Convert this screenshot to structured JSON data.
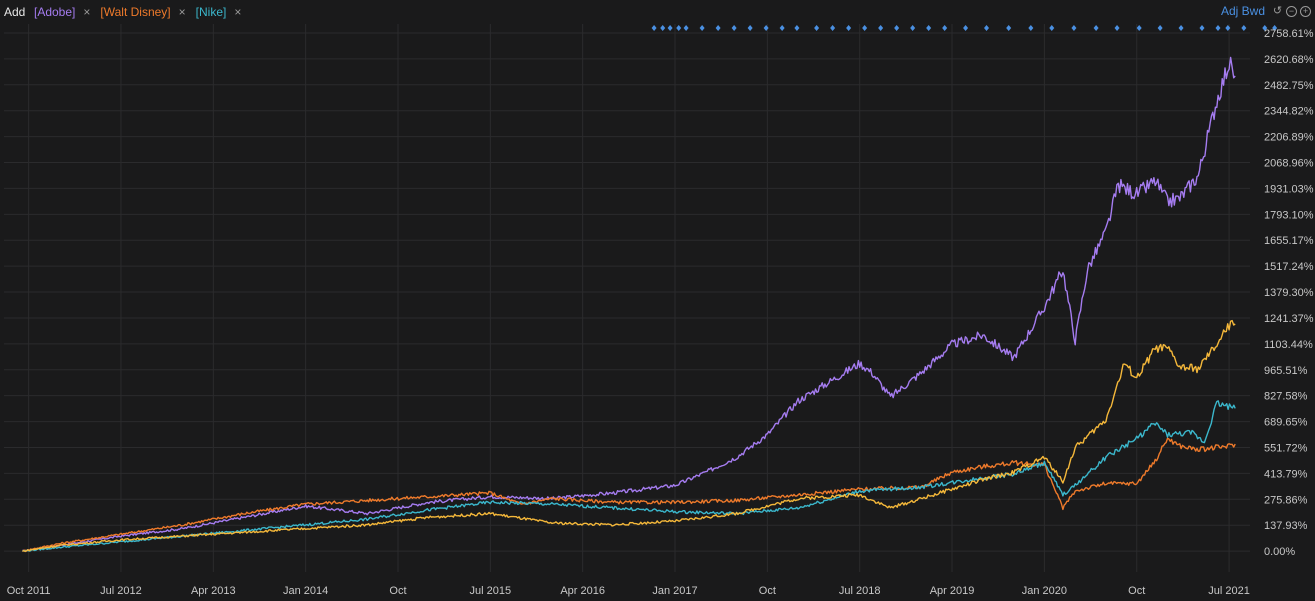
{
  "toolbar": {
    "add_label": "Add",
    "series_tags": [
      {
        "label": "[Adobe]",
        "color": "#a57cf0"
      },
      {
        "label": "[Walt Disney]",
        "color": "#ee7a2b"
      },
      {
        "label": "[Nike]",
        "color": "#3bb7cc"
      }
    ],
    "close_glyph": "×",
    "adj_label": "Adj Bwd"
  },
  "chart_data": {
    "type": "line",
    "y_ticks": [
      "0.00%",
      "137.93%",
      "275.86%",
      "413.79%",
      "551.72%",
      "689.65%",
      "827.58%",
      "965.51%",
      "1103.44%",
      "1241.37%",
      "1379.30%",
      "1517.24%",
      "1655.17%",
      "1793.10%",
      "1931.03%",
      "2068.96%",
      "2206.89%",
      "2344.82%",
      "2482.75%",
      "2620.68%",
      "2758.61%"
    ],
    "x_ticks": [
      "Oct 2011",
      "Jul 2012",
      "Apr 2013",
      "Jan 2014",
      "Oct",
      "Jul 2015",
      "Apr 2016",
      "Jan 2017",
      "Oct",
      "Jul 2018",
      "Apr 2019",
      "Jan 2020",
      "Oct",
      "Jul 2021"
    ],
    "ylim": [
      -10,
      2758.61
    ],
    "grid": true,
    "series": [
      {
        "key": "adobe",
        "color": "#a57cf0",
        "x": [
          2011.7,
          2012.0,
          2012.5,
          2013.0,
          2013.5,
          2014.0,
          2014.5,
          2015.0,
          2015.5,
          2016.0,
          2016.5,
          2017.0,
          2017.25,
          2017.5,
          2017.75,
          2018.0,
          2018.25,
          2018.5,
          2018.6,
          2018.75,
          2019.0,
          2019.25,
          2019.5,
          2019.75,
          2020.0,
          2020.15,
          2020.25,
          2020.35,
          2020.5,
          2020.6,
          2020.75,
          2020.9,
          2021.0,
          2021.1,
          2021.25,
          2021.4,
          2021.5,
          2021.55
        ],
        "y": [
          0,
          30,
          80,
          120,
          180,
          240,
          200,
          260,
          290,
          280,
          310,
          350,
          420,
          500,
          620,
          800,
          900,
          1000,
          950,
          820,
          950,
          1100,
          1150,
          1030,
          1300,
          1500,
          1120,
          1500,
          1700,
          1950,
          1900,
          1970,
          1860,
          1880,
          2000,
          2400,
          2600,
          2530
        ]
      },
      {
        "key": "disney",
        "color": "#ee7a2b",
        "x": [
          2011.7,
          2012.0,
          2012.5,
          2013.0,
          2013.5,
          2014.0,
          2014.5,
          2015.0,
          2015.5,
          2015.75,
          2016.0,
          2016.5,
          2017.0,
          2017.5,
          2018.0,
          2018.5,
          2019.0,
          2019.25,
          2019.5,
          2019.75,
          2020.0,
          2020.15,
          2020.25,
          2020.5,
          2020.75,
          2020.9,
          2021.0,
          2021.1,
          2021.25,
          2021.5,
          2021.55
        ],
        "y": [
          0,
          40,
          90,
          140,
          200,
          250,
          270,
          290,
          310,
          250,
          280,
          260,
          260,
          270,
          300,
          330,
          340,
          420,
          450,
          470,
          460,
          230,
          320,
          360,
          360,
          480,
          600,
          560,
          540,
          560,
          570
        ]
      },
      {
        "key": "nike",
        "color": "#3bb7cc",
        "x": [
          2011.7,
          2012.0,
          2012.5,
          2013.0,
          2013.5,
          2014.0,
          2014.5,
          2015.0,
          2015.5,
          2016.0,
          2016.5,
          2017.0,
          2017.5,
          2018.0,
          2018.5,
          2019.0,
          2019.5,
          2019.75,
          2020.0,
          2020.15,
          2020.25,
          2020.5,
          2020.75,
          2020.9,
          2021.0,
          2021.2,
          2021.3,
          2021.4,
          2021.55
        ],
        "y": [
          0,
          20,
          50,
          80,
          110,
          140,
          170,
          220,
          260,
          250,
          230,
          210,
          200,
          230,
          320,
          340,
          390,
          410,
          470,
          300,
          350,
          500,
          600,
          680,
          620,
          630,
          580,
          790,
          760
        ]
      },
      {
        "key": "fourth",
        "color": "#f5b83a",
        "x": [
          2011.7,
          2012.0,
          2012.5,
          2013.0,
          2013.5,
          2014.0,
          2014.5,
          2015.0,
          2015.5,
          2016.0,
          2016.5,
          2017.0,
          2017.5,
          2018.0,
          2018.5,
          2018.75,
          2019.0,
          2019.5,
          2019.75,
          2020.0,
          2020.15,
          2020.25,
          2020.5,
          2020.65,
          2020.75,
          2020.9,
          2021.0,
          2021.1,
          2021.25,
          2021.4,
          2021.5,
          2021.55
        ],
        "y": [
          0,
          30,
          60,
          80,
          100,
          120,
          140,
          180,
          200,
          150,
          140,
          160,
          200,
          280,
          300,
          230,
          280,
          380,
          420,
          500,
          370,
          550,
          700,
          1000,
          920,
          1080,
          1080,
          980,
          970,
          1100,
          1200,
          1210
        ]
      }
    ],
    "marker_dates": [
      2016.83,
      2016.9,
      2016.96,
      2017.03,
      2017.09,
      2017.22,
      2017.35,
      2017.48,
      2017.61,
      2017.74,
      2017.87,
      2017.99,
      2018.15,
      2018.28,
      2018.41,
      2018.54,
      2018.67,
      2018.8,
      2018.93,
      2019.06,
      2019.19,
      2019.36,
      2019.53,
      2019.71,
      2019.89,
      2020.06,
      2020.24,
      2020.42,
      2020.59,
      2020.77,
      2020.94,
      2021.11,
      2021.28,
      2021.41,
      2021.49,
      2021.62,
      2021.79,
      2021.87
    ]
  }
}
